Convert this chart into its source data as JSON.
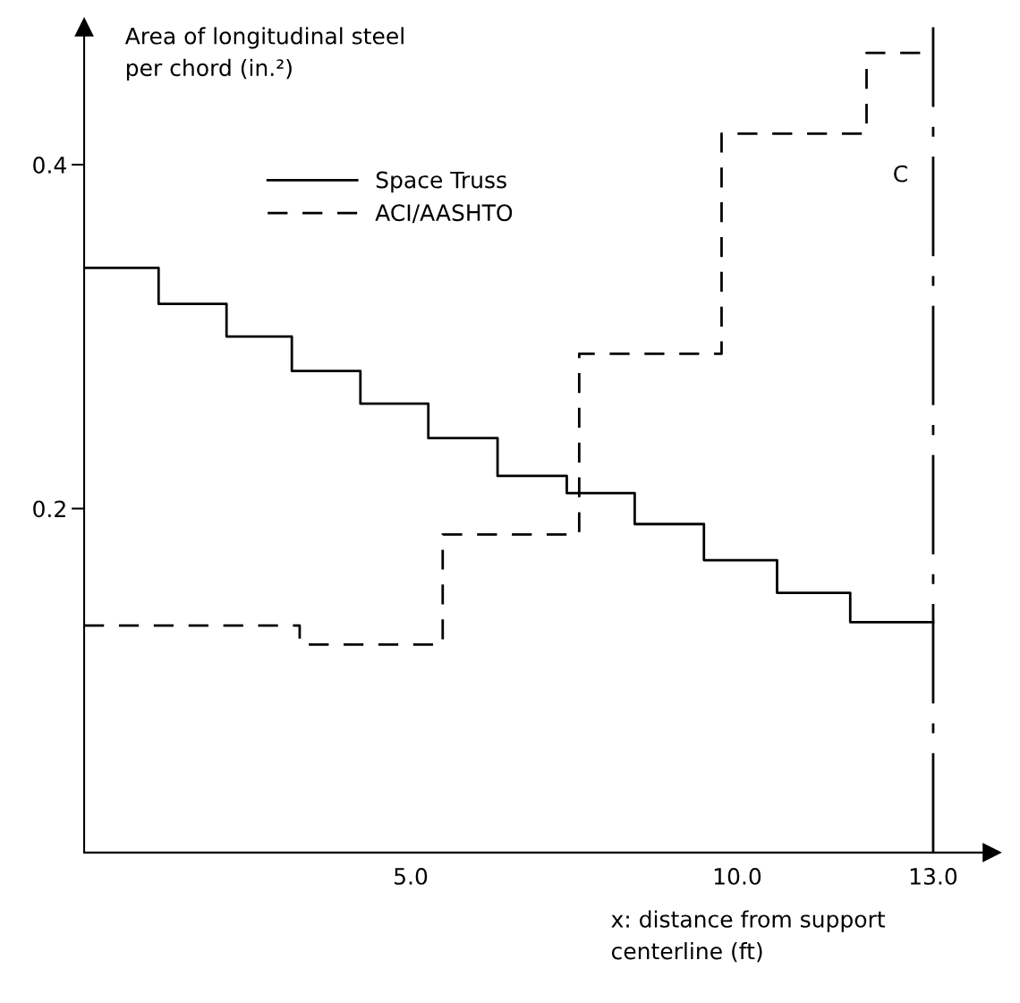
{
  "chart_data": {
    "type": "step",
    "xlabel": "x: distance from support\ncenterline (ft)",
    "ylabel": "Area of longitudinal steel\nper chord (in.²)",
    "series": [
      {
        "name": "Space Truss",
        "color": "#000000",
        "line_style": "solid",
        "x": [
          0,
          1.14,
          2.18,
          3.18,
          4.23,
          5.27,
          6.33,
          7.39,
          8.43,
          9.49,
          10.61,
          11.73,
          13.0
        ],
        "values": [
          0.34,
          0.319,
          0.3,
          0.28,
          0.261,
          0.241,
          0.219,
          0.209,
          0.191,
          0.17,
          0.151,
          0.134,
          0.134
        ]
      },
      {
        "name": "ACI/AASHTO",
        "color": "#000000",
        "line_style": "dashed",
        "x": [
          0,
          3.3,
          5.49,
          7.58,
          9.76,
          11.98,
          13.0
        ],
        "values": [
          0.132,
          0.121,
          0.185,
          0.29,
          0.418,
          0.465,
          0.465
        ]
      }
    ],
    "xlim": [
      0,
      13.9
    ],
    "ylim": [
      0,
      0.48
    ],
    "xticks": [
      {
        "value": 5,
        "label": "5.0"
      },
      {
        "value": 10,
        "label": "10.0"
      },
      {
        "value": 13,
        "label": "13.0"
      }
    ],
    "yticks": [
      0.2,
      0.4
    ],
    "ref_lines": [
      {
        "axis": "x",
        "value": 13,
        "label": "C",
        "color": "#000000",
        "line_style": "dashdot"
      }
    ],
    "grid": false,
    "legend": "top left"
  }
}
